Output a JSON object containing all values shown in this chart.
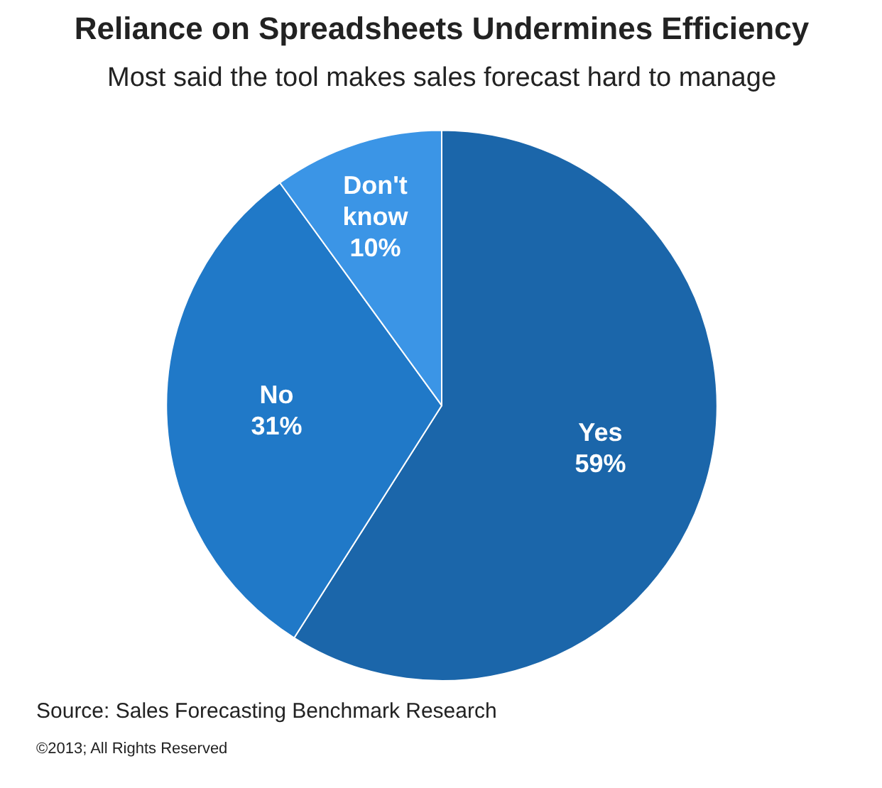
{
  "chart_data": {
    "type": "pie",
    "title": "Reliance on Spreadsheets Undermines Efficiency",
    "subtitle": "Most said the tool makes sales forecast hard to manage",
    "categories": [
      "Yes",
      "No",
      "Don't know"
    ],
    "values": [
      59,
      31,
      10
    ],
    "colors": [
      "#1b66aa",
      "#2079c8",
      "#3b95e6"
    ],
    "value_labels": [
      "59%",
      "31%",
      "10%"
    ],
    "annotations": [
      "Source: Sales Forecasting Benchmark Research",
      "©2013; All Rights Reserved"
    ]
  }
}
